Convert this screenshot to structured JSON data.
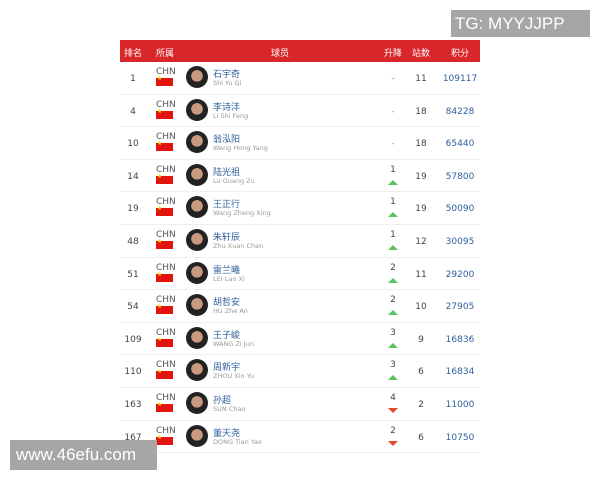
{
  "header": {
    "rank": "排名",
    "country": "所属",
    "player": "球员",
    "change": "升降",
    "events": "站数",
    "points": "积分"
  },
  "colors": {
    "header_bg": "#d9262b",
    "name": "#2e5f9c",
    "up": "#5dc35d",
    "down": "#e04a2a"
  },
  "rows": [
    {
      "rank": "1",
      "country": "CHN",
      "cn": "石宇奇",
      "en": "Shi Yu Qi",
      "change": "-",
      "dir": "none",
      "events": "11",
      "points": "109117"
    },
    {
      "rank": "4",
      "country": "CHN",
      "cn": "李诗沣",
      "en": "Li Shi Feng",
      "change": "-",
      "dir": "none",
      "events": "18",
      "points": "84228"
    },
    {
      "rank": "10",
      "country": "CHN",
      "cn": "翁泓阳",
      "en": "Weng Hong Yang",
      "change": "-",
      "dir": "none",
      "events": "18",
      "points": "65440"
    },
    {
      "rank": "14",
      "country": "CHN",
      "cn": "陆光祖",
      "en": "Lu Guang Zu",
      "change": "1",
      "dir": "up",
      "events": "19",
      "points": "57800"
    },
    {
      "rank": "19",
      "country": "CHN",
      "cn": "王正行",
      "en": "Wang Zheng Xing",
      "change": "1",
      "dir": "up",
      "events": "19",
      "points": "50090"
    },
    {
      "rank": "48",
      "country": "CHN",
      "cn": "朱轩辰",
      "en": "Zhu Xuan Chen",
      "change": "1",
      "dir": "up",
      "events": "12",
      "points": "30095"
    },
    {
      "rank": "51",
      "country": "CHN",
      "cn": "雷兰曦",
      "en": "LEI Lan Xi",
      "change": "2",
      "dir": "up",
      "events": "11",
      "points": "29200"
    },
    {
      "rank": "54",
      "country": "CHN",
      "cn": "胡哲安",
      "en": "HU Zhe An",
      "change": "2",
      "dir": "up",
      "events": "10",
      "points": "27905"
    },
    {
      "rank": "109",
      "country": "CHN",
      "cn": "王子峻",
      "en": "WANG Zi Jun",
      "change": "3",
      "dir": "up",
      "events": "9",
      "points": "16836"
    },
    {
      "rank": "110",
      "country": "CHN",
      "cn": "周新宇",
      "en": "ZHOU Xin Yu",
      "change": "3",
      "dir": "up",
      "events": "6",
      "points": "16834"
    },
    {
      "rank": "163",
      "country": "CHN",
      "cn": "孙超",
      "en": "SUN Chao",
      "change": "4",
      "dir": "down",
      "events": "2",
      "points": "11000"
    },
    {
      "rank": "167",
      "country": "CHN",
      "cn": "董天尧",
      "en": "DONG Tian Yao",
      "change": "2",
      "dir": "down",
      "events": "6",
      "points": "10750"
    }
  ],
  "watermarks": {
    "tg": "TG: MYYJJPP",
    "site": "www.46efu.com"
  }
}
